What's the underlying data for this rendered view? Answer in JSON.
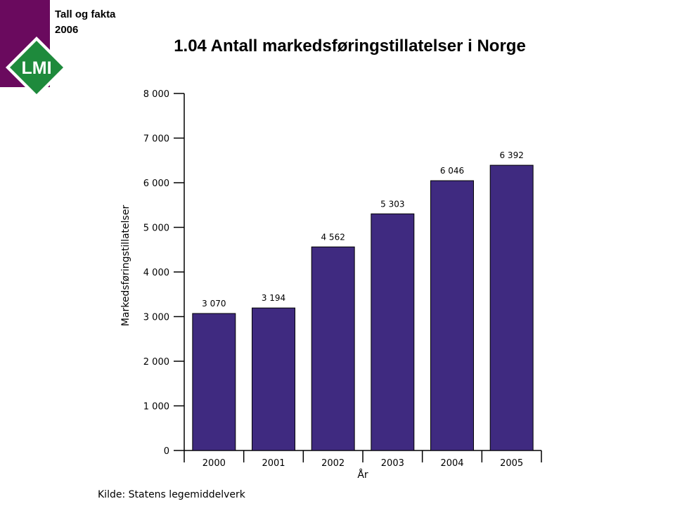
{
  "header": {
    "label_line1": "Tall og fakta",
    "label_line2": "2006",
    "logo_text": "LMI",
    "title": "1.04 Antall markedsføringstillatelser i Norge"
  },
  "source": "Kilde: Statens legemiddelverk",
  "colors": {
    "brand": "#6a0a5e",
    "logo_green": "#1e8a3c",
    "bar": "#3f2a80"
  },
  "chart_data": {
    "type": "bar",
    "categories": [
      "2000",
      "2001",
      "2002",
      "2003",
      "2004",
      "2005"
    ],
    "values": [
      3070,
      3194,
      4562,
      5303,
      6046,
      6392
    ],
    "value_labels": [
      "3 070",
      "3 194",
      "4 562",
      "5 303",
      "6 046",
      "6 392"
    ],
    "title": "1.04 Antall markedsføringstillatelser i Norge",
    "xlabel": "År",
    "ylabel": "Markedsføringstillatelser",
    "ylim": [
      0,
      8000
    ],
    "yticks": [
      0,
      1000,
      2000,
      3000,
      4000,
      5000,
      6000,
      7000,
      8000
    ],
    "ytick_labels": [
      "0",
      "1 000",
      "2 000",
      "3 000",
      "4 000",
      "5 000",
      "6 000",
      "7 000",
      "8 000"
    ],
    "grid": false,
    "legend": "none"
  }
}
